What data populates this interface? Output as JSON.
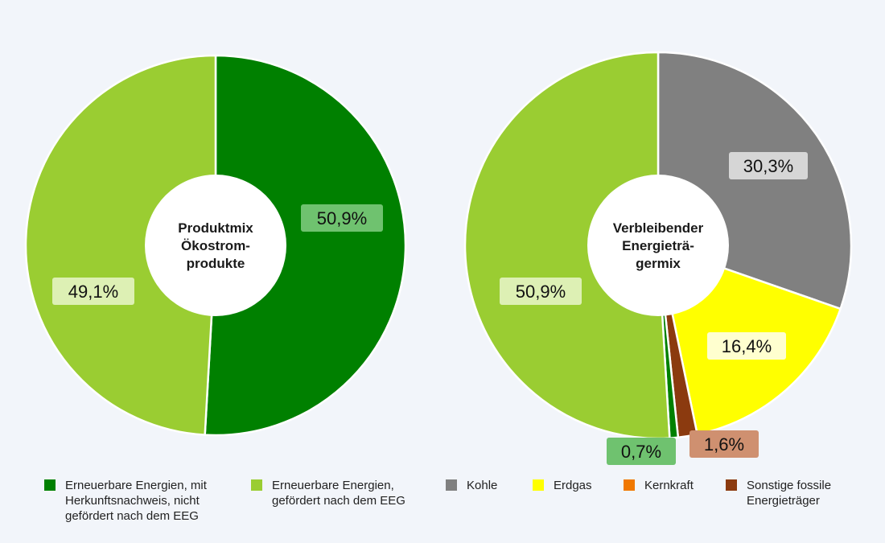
{
  "chart_data": [
    {
      "type": "pie",
      "title": "Produktmix\nÖkostrom-\nprodukte",
      "slices": [
        {
          "label": "Erneuerbare Energien, mit Herkunftsnachweis, nicht gefördert nach dem EEG",
          "value": 50.9,
          "display": "50,9%",
          "color": "#008000"
        },
        {
          "label": "Erneuerbare Energien, gefördert nach dem EEG",
          "value": 49.1,
          "display": "49,1%",
          "color": "#9acd32"
        }
      ]
    },
    {
      "type": "pie",
      "title": "Verbleibender\nEnergieträ-\ngermix",
      "slices": [
        {
          "label": "Kohle",
          "value": 30.3,
          "display": "30,3%",
          "color": "#808080"
        },
        {
          "label": "Erdgas",
          "value": 16.4,
          "display": "16,4%",
          "color": "#ffff00"
        },
        {
          "label": "Sonstige fossile Energieträger",
          "value": 1.6,
          "display": "1,6%",
          "color": "#8b3a0f"
        },
        {
          "label": "Erneuerbare Energien, mit Herkunftsnachweis, nicht gefördert nach dem EEG",
          "value": 0.7,
          "display": "0,7%",
          "color": "#008000"
        },
        {
          "label": "Erneuerbare Energien, gefördert nach dem EEG",
          "value": 50.9,
          "display": "50,9%",
          "color": "#9acd32"
        }
      ]
    }
  ],
  "label_colors": {
    "#008000": "#6fc26f",
    "#9acd32": "#ddf0b4",
    "#808080": "#d6d6d6",
    "#ffff00": "#ffffcf",
    "#8b3a0f": "#cf9070"
  },
  "legend": [
    {
      "label": "Erneuerbare Energien, mit\nHerkunftsnachweis, nicht\ngefördert nach dem EEG",
      "color": "#008000"
    },
    {
      "label": "Erneuerbare Energien,\ngefördert nach dem EEG",
      "color": "#9acd32"
    },
    {
      "label": "Kohle",
      "color": "#808080"
    },
    {
      "label": "Erdgas",
      "color": "#ffff00"
    },
    {
      "label": "Kernkraft",
      "color": "#f07800"
    },
    {
      "label": "Sonstige fossile\nEnergieträger",
      "color": "#8b3a0f"
    }
  ]
}
